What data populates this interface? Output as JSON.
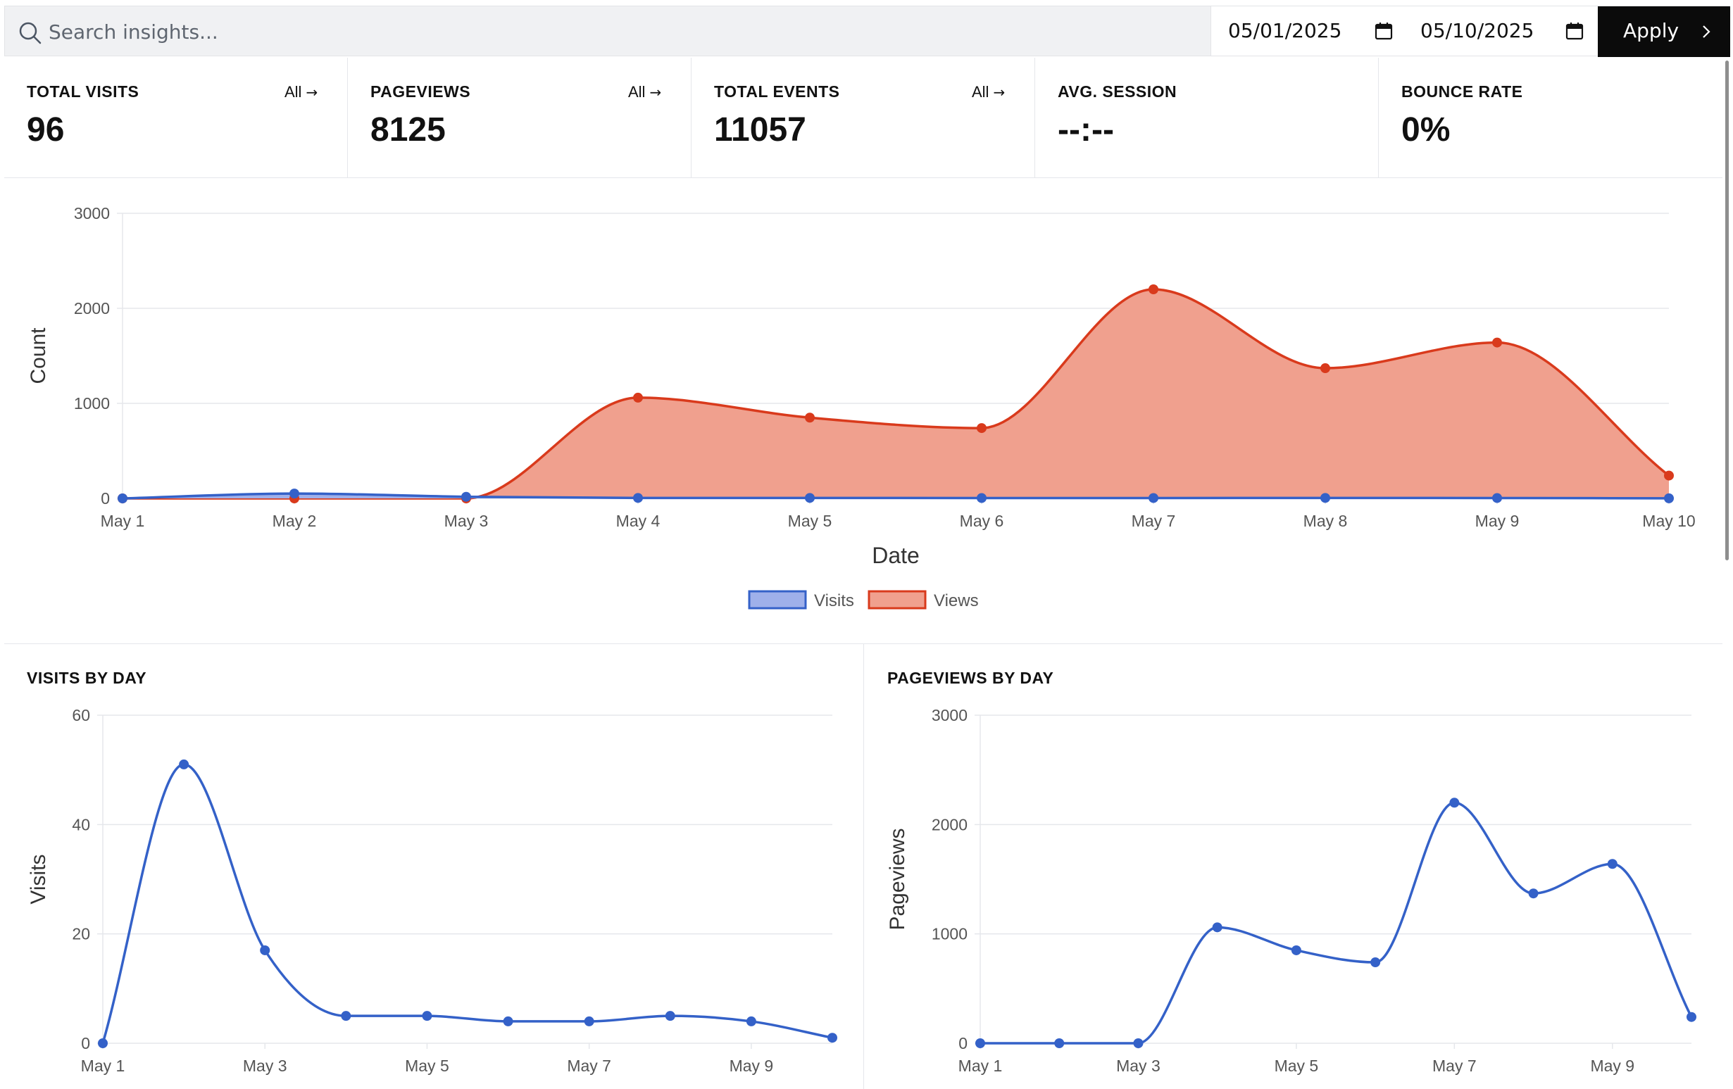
{
  "search": {
    "placeholder": "Search insights..."
  },
  "date_range": {
    "start": "05/01/2025",
    "end": "05/10/2025"
  },
  "apply_button": {
    "label": "Apply"
  },
  "stats": [
    {
      "label": "TOTAL VISITS",
      "value": "96",
      "link": "All"
    },
    {
      "label": "PAGEVIEWS",
      "value": "8125",
      "link": "All"
    },
    {
      "label": "TOTAL EVENTS",
      "value": "11057",
      "link": "All"
    },
    {
      "label": "AVG. SESSION",
      "value": "--:--"
    },
    {
      "label": "BOUNCE RATE",
      "value": "0%"
    }
  ],
  "panels": {
    "visits_title": "VISITS BY DAY",
    "pageviews_title": "PAGEVIEWS BY DAY"
  },
  "colors": {
    "visits": "#3461c8",
    "views": "#d93a1c",
    "views_fill": "#f0a08e",
    "visits_fill": "#9fb0ea"
  },
  "chart_data": [
    {
      "type": "area",
      "x": [
        "May 1",
        "May 2",
        "May 3",
        "May 4",
        "May 5",
        "May 6",
        "May 7",
        "May 8",
        "May 9",
        "May 10"
      ],
      "series": [
        {
          "name": "Visits",
          "values": [
            0,
            51,
            17,
            5,
            5,
            4,
            4,
            5,
            4,
            1
          ]
        },
        {
          "name": "Views",
          "values": [
            0,
            0,
            0,
            1060,
            850,
            740,
            2200,
            1370,
            1640,
            240
          ]
        }
      ],
      "xlabel": "Date",
      "ylabel": "Count",
      "ylim": [
        0,
        3000
      ],
      "yticks": [
        "0",
        "1000",
        "2000",
        "3000"
      ],
      "legend": "bottom-center",
      "grid": true
    },
    {
      "type": "line",
      "x": [
        "May 1",
        "May 2",
        "May 3",
        "May 4",
        "May 5",
        "May 6",
        "May 7",
        "May 8",
        "May 9",
        "May 10"
      ],
      "xticks": [
        "May 1",
        "May 3",
        "May 5",
        "May 7",
        "May 9"
      ],
      "series": [
        {
          "values": [
            0,
            51,
            17,
            5,
            5,
            4,
            4,
            5,
            4,
            1
          ]
        }
      ],
      "ylabel": "Visits",
      "ylim": [
        0,
        60
      ],
      "yticks": [
        "0",
        "20",
        "40",
        "60"
      ],
      "grid": true
    },
    {
      "type": "line",
      "x": [
        "May 1",
        "May 2",
        "May 3",
        "May 4",
        "May 5",
        "May 6",
        "May 7",
        "May 8",
        "May 9",
        "May 10"
      ],
      "xticks": [
        "May 1",
        "May 3",
        "May 5",
        "May 7",
        "May 9"
      ],
      "series": [
        {
          "values": [
            0,
            0,
            0,
            1060,
            850,
            740,
            2200,
            1370,
            1640,
            240
          ]
        }
      ],
      "ylabel": "Pageviews",
      "ylim": [
        0,
        3000
      ],
      "yticks": [
        "0",
        "1000",
        "2000",
        "3000"
      ],
      "grid": true
    }
  ]
}
